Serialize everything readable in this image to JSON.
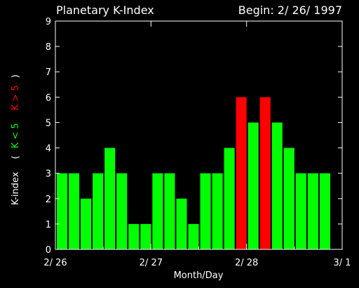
{
  "chart_data": {
    "type": "bar",
    "title": "Planetary K-Index",
    "begin_label": "Begin: 2/ 26/ 1997",
    "xlabel": "Month/Day",
    "ylabel": {
      "prefix": "K-index",
      "open_paren": "(",
      "low_label": "K < 5",
      "high_label": "K > 5",
      "close_paren": ")"
    },
    "ylim": [
      0,
      9
    ],
    "yticks": [
      "0",
      "1",
      "2",
      "3",
      "4",
      "5",
      "6",
      "7",
      "8",
      "9"
    ],
    "xticks": [
      "2/ 26",
      "2/ 27",
      "2/ 28",
      "3/ 1"
    ],
    "threshold": 5,
    "values": [
      3,
      3,
      2,
      3,
      4,
      3,
      1,
      1,
      3,
      3,
      2,
      1,
      3,
      3,
      4,
      6,
      5,
      6,
      5,
      4,
      3,
      3,
      3
    ],
    "grid": false,
    "colors": {
      "background": "#000000",
      "axis": "#ffffff",
      "text": "#ffffff",
      "low": "#00ff00",
      "high": "#ff0000"
    }
  }
}
